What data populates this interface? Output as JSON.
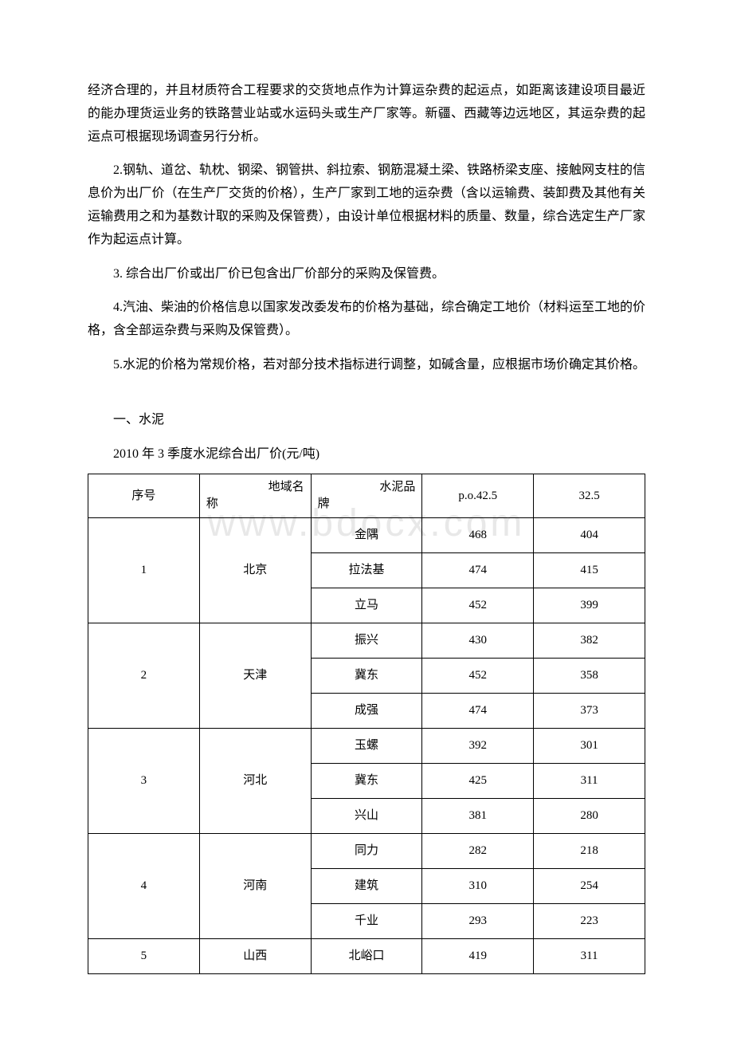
{
  "paragraphs": {
    "p1": "经济合理的，并且材质符合工程要求的交货地点作为计算运杂费的起运点，如距离该建设项目最近的能办理货运业务的铁路营业站或水运码头或生产厂家等。新疆、西藏等边远地区，其运杂费的起运点可根据现场调查另行分析。",
    "p2": "2.钢轨、道岔、轨枕、钢梁、钢管拱、斜拉索、钢筋混凝土梁、铁路桥梁支座、接触网支柱的信息价为出厂价（在生产厂交货的价格），生产厂家到工地的运杂费（含以运输费、装卸费及其他有关运输费用之和为基数计取的采购及保管费），由设计单位根据材料的质量、数量，综合选定生产厂家作为起运点计算。",
    "p3": "3. 综合出厂价或出厂价已包含出厂价部分的采购及保管费。",
    "p4": "4.汽油、柴油的价格信息以国家发改委发布的价格为基础，综合确定工地价（材料运至工地的价格，含全部运杂费与采购及保管费）。",
    "p5": "5.水泥的价格为常规价格，若对部分技术指标进行调整，如碱含量，应根据市场价确定其价格。"
  },
  "section_title": "一、水泥",
  "table_title": "2010 年 3 季度水泥综合出厂价(元/吨)",
  "watermark": "www.bdocx.com",
  "table": {
    "headers": {
      "col1": "序号",
      "col2_right": "地域名",
      "col2_left": "称",
      "col3_right": "水泥品",
      "col3_left": "牌",
      "col4": "p.o.42.5",
      "col5": "32.5"
    },
    "rows": [
      {
        "seq": "1",
        "region": "北京",
        "brands": [
          {
            "name": "金隅",
            "v1": "468",
            "v2": "404"
          },
          {
            "name": "拉法基",
            "v1": "474",
            "v2": "415"
          },
          {
            "name": "立马",
            "v1": "452",
            "v2": "399"
          }
        ]
      },
      {
        "seq": "2",
        "region": "天津",
        "brands": [
          {
            "name": "振兴",
            "v1": "430",
            "v2": "382"
          },
          {
            "name": "冀东",
            "v1": "452",
            "v2": "358"
          },
          {
            "name": "成强",
            "v1": "474",
            "v2": "373"
          }
        ]
      },
      {
        "seq": "3",
        "region": "河北",
        "brands": [
          {
            "name": "玉螺",
            "v1": "392",
            "v2": "301"
          },
          {
            "name": "冀东",
            "v1": "425",
            "v2": "311"
          },
          {
            "name": "兴山",
            "v1": "381",
            "v2": "280"
          }
        ]
      },
      {
        "seq": "4",
        "region": "河南",
        "brands": [
          {
            "name": "同力",
            "v1": "282",
            "v2": "218"
          },
          {
            "name": "建筑",
            "v1": "310",
            "v2": "254"
          },
          {
            "name": "千业",
            "v1": "293",
            "v2": "223"
          }
        ]
      },
      {
        "seq": "5",
        "region": "山西",
        "brands": [
          {
            "name": "北峪口",
            "v1": "419",
            "v2": "311"
          }
        ]
      }
    ]
  },
  "style": {
    "background_color": "#ffffff",
    "text_color": "#000000",
    "border_color": "#000000",
    "watermark_color": "#e8e8e8",
    "body_fontsize": 16,
    "table_fontsize": 15,
    "watermark_fontsize": 48
  }
}
